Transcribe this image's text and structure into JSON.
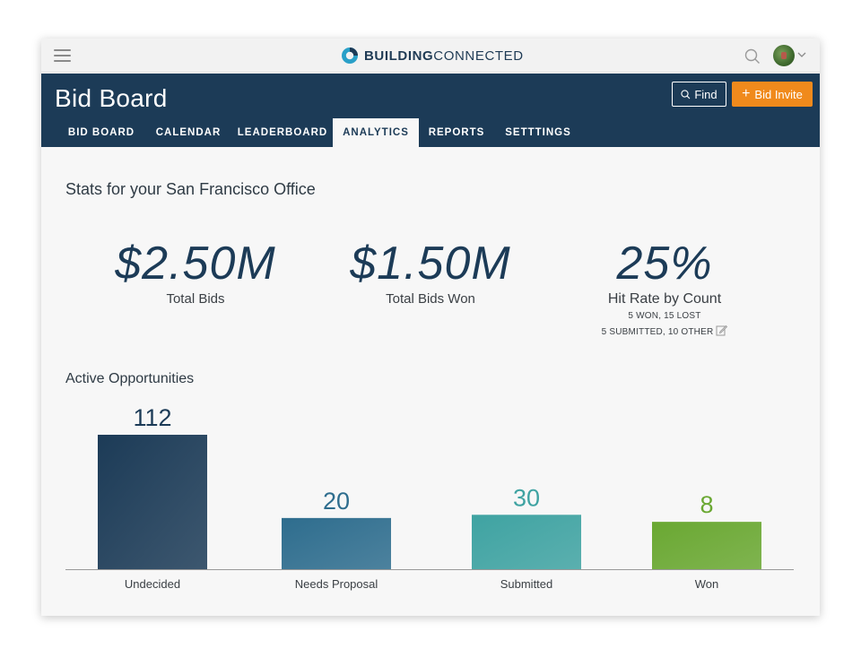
{
  "topbar": {
    "logo_bold": "BUILDING",
    "logo_light": "CONNECTED",
    "icons": [
      "hamburger-icon",
      "search-icon",
      "avatar",
      "chevron-down-icon"
    ]
  },
  "header": {
    "title": "Bid Board",
    "find_label": "Find",
    "bid_invite_label": "Bid Invite",
    "accent": "#f08a1c",
    "bg": "#1c3b57"
  },
  "tabs": [
    {
      "label": "BID BOARD",
      "active": false
    },
    {
      "label": "CALENDAR",
      "active": false
    },
    {
      "label": "LEADERBOARD",
      "active": false
    },
    {
      "label": "ANALYTICS",
      "active": true
    },
    {
      "label": "REPORTS",
      "active": false
    },
    {
      "label": "SETTTINGS",
      "active": false
    }
  ],
  "stats": {
    "title": "Stats for your San Francisco Office",
    "total_bids": {
      "value": "$2.50M",
      "label": "Total Bids"
    },
    "total_won": {
      "value": "$1.50M",
      "label": "Total Bids Won"
    },
    "hit_rate": {
      "value": "25%",
      "label": "Hit Rate by Count",
      "line1": "5 WON, 15 LOST",
      "line2": "5 SUBMITTED, 10 OTHER"
    }
  },
  "opportunities": {
    "title": "Active Opportunities"
  },
  "chart_data": {
    "type": "bar",
    "categories": [
      "Undecided",
      "Needs Proposal",
      "Submitted",
      "Won"
    ],
    "values": [
      112,
      20,
      30,
      8
    ],
    "colors": [
      "#1c3b57",
      "#2e6d8e",
      "#3fa3a2",
      "#6aa832"
    ],
    "value_label_colors": [
      "#1c3b57",
      "#2e6d8e",
      "#3fa3a2",
      "#6aa832"
    ],
    "title": "",
    "xlabel": "",
    "ylabel": "",
    "grid": false,
    "legend": "none"
  }
}
